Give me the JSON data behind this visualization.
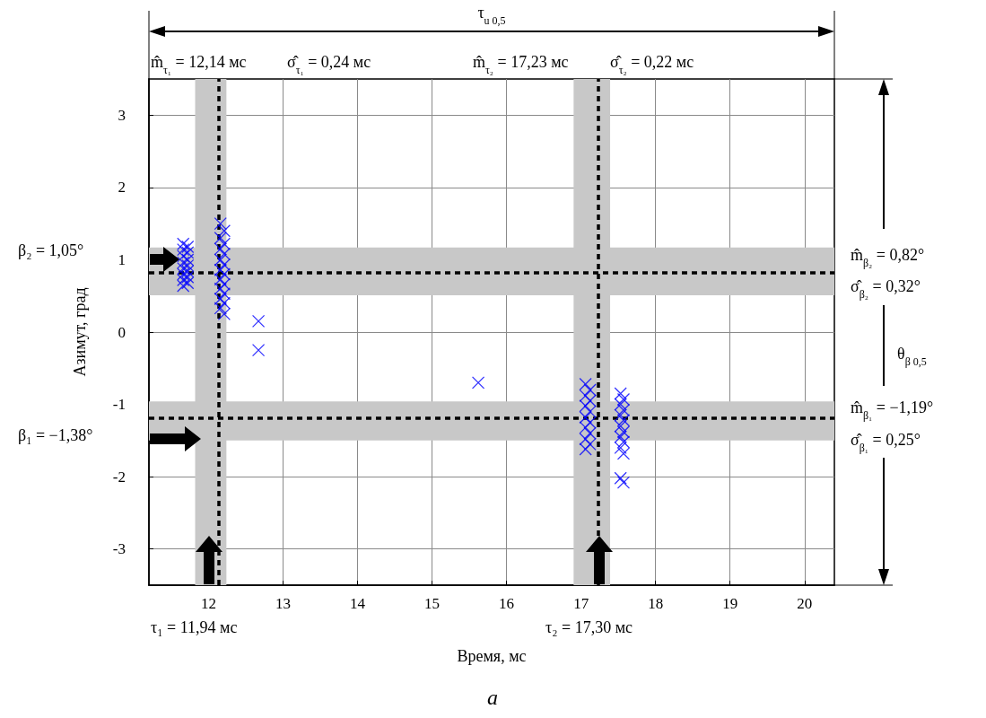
{
  "chart_data": {
    "type": "scatter",
    "xlabel": "Время, мс",
    "ylabel": "Азимут, град",
    "xlim": [
      11.2,
      20.4
    ],
    "ylim": [
      -3.5,
      3.5
    ],
    "xticks": [
      12,
      13,
      14,
      15,
      16,
      17,
      18,
      19,
      20
    ],
    "yticks": [
      -3,
      -2,
      -1,
      0,
      1,
      2,
      3
    ],
    "grid": true,
    "marker": "cross",
    "series": [
      {
        "color": "#0000ff",
        "x": [
          11.66,
          11.72,
          11.66,
          11.72,
          11.66,
          11.72,
          11.66,
          11.72,
          11.66,
          11.72,
          11.66,
          11.72,
          11.66,
          11.72,
          11.66,
          12.16,
          12.21,
          12.16,
          12.21,
          12.16,
          12.21,
          12.16,
          12.21,
          12.16,
          12.21,
          12.16,
          12.21,
          12.16,
          12.21,
          12.16,
          12.21,
          12.16,
          12.21,
          12.67,
          12.67,
          15.62,
          17.06,
          17.12,
          17.06,
          17.12,
          17.06,
          17.12,
          17.06,
          17.12,
          17.06,
          17.12,
          17.06,
          17.12,
          17.06,
          17.53,
          17.57,
          17.53,
          17.57,
          17.53,
          17.57,
          17.53,
          17.57,
          17.53,
          17.57,
          17.53,
          17.57,
          17.53,
          17.57
        ],
        "values": [
          1.22,
          1.18,
          1.14,
          1.1,
          1.05,
          1.0,
          0.96,
          0.92,
          0.88,
          0.84,
          0.8,
          0.76,
          0.72,
          0.68,
          0.64,
          1.5,
          1.4,
          1.3,
          1.22,
          1.15,
          1.08,
          1.0,
          0.93,
          0.86,
          0.8,
          0.73,
          0.66,
          0.6,
          0.53,
          0.46,
          0.4,
          0.33,
          0.25,
          0.15,
          -0.25,
          -0.7,
          -0.72,
          -0.8,
          -0.88,
          -0.95,
          -1.02,
          -1.1,
          -1.18,
          -1.25,
          -1.32,
          -1.4,
          -1.48,
          -1.55,
          -1.62,
          -0.85,
          -0.93,
          -1.0,
          -1.08,
          -1.15,
          -1.22,
          -1.3,
          -1.38,
          -1.45,
          -1.52,
          -1.6,
          -1.68,
          -2.02,
          -2.08
        ]
      }
    ],
    "ref_lines": [
      {
        "axis": "y",
        "value": 0.82,
        "color": "#000000",
        "line_style": "dashed"
      },
      {
        "axis": "y",
        "value": -1.19,
        "color": "#000000",
        "line_style": "dashed"
      },
      {
        "axis": "x",
        "value": 12.14,
        "color": "#000000",
        "line_style": "dashed"
      },
      {
        "axis": "x",
        "value": 17.23,
        "color": "#000000",
        "line_style": "dashed"
      }
    ],
    "bands": [
      {
        "axis": "y",
        "from": 0.51,
        "to": 1.17,
        "color": "#c8c8c8"
      },
      {
        "axis": "y",
        "from": -1.5,
        "to": -0.96,
        "color": "#c8c8c8"
      },
      {
        "axis": "x",
        "from": 11.82,
        "to": 12.24,
        "color": "#c8c8c8"
      },
      {
        "axis": "x",
        "from": 16.9,
        "to": 17.39,
        "color": "#c8c8c8"
      }
    ],
    "annotations": [
      "τ$_{u 0,5}$",
      "m̂$_{τ₁}$ = 12,14 мс",
      "σ̂$_{τ₁}$ = 0,24 мс",
      "m̂$_{τ₂}$ = 17,23 мс",
      "σ̂$_{τ₂}$ = 0,22 мс",
      "m̂$_{β₂}$ = 0,82°",
      "σ̂$_{β₂}$ = 0,32°",
      "θ$_{β 0,5}$",
      "m̂$_{β₁}$ = −1,19°",
      "σ̂$_{β₁}$ = 0,25°",
      "β₂ = 1,05°",
      "β₁ = −1,38°",
      "τ₁ = 11,94 мс",
      "τ₂ = 17,30 мс",
      "a"
    ]
  }
}
